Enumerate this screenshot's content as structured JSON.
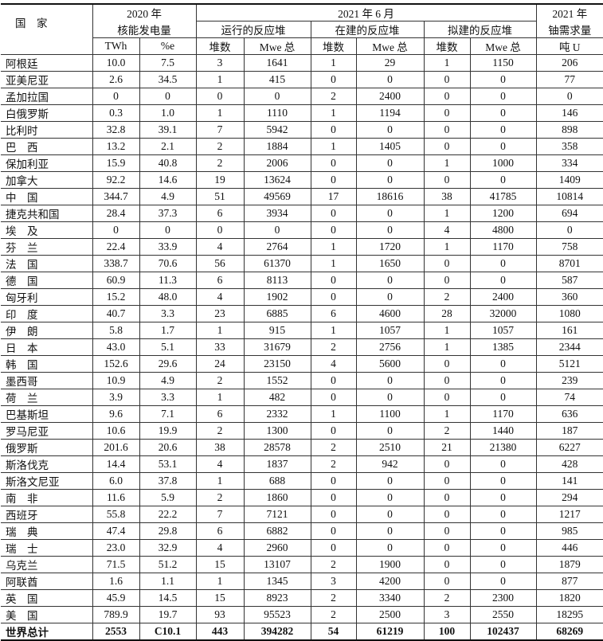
{
  "header": {
    "country": "国　家",
    "gen_year": "2020 年",
    "gen_title": "核能发电量",
    "twh": "TWh",
    "pct": "%e",
    "period": "2021 年 6 月",
    "operating": "运行的反应堆",
    "construction": "在建的反应堆",
    "planned": "拟建的反应堆",
    "count": "堆数",
    "mwe": "Mwe 总",
    "uranium_year": "2021 年",
    "uranium_title": "铀需求量",
    "uranium_unit": "吨 U"
  },
  "rows": [
    [
      "阿根廷",
      "10.0",
      "7.5",
      "3",
      "1641",
      "1",
      "29",
      "1",
      "1150",
      "206"
    ],
    [
      "亚美尼亚",
      "2.6",
      "34.5",
      "1",
      "415",
      "0",
      "0",
      "0",
      "0",
      "77"
    ],
    [
      "孟加拉国",
      "0",
      "0",
      "0",
      "0",
      "2",
      "2400",
      "0",
      "0",
      "0"
    ],
    [
      "白俄罗斯",
      "0.3",
      "1.0",
      "1",
      "1110",
      "1",
      "1194",
      "0",
      "0",
      "146"
    ],
    [
      "比利时",
      "32.8",
      "39.1",
      "7",
      "5942",
      "0",
      "0",
      "0",
      "0",
      "898"
    ],
    [
      "巴　西",
      "13.2",
      "2.1",
      "2",
      "1884",
      "1",
      "1405",
      "0",
      "0",
      "358"
    ],
    [
      "保加利亚",
      "15.9",
      "40.8",
      "2",
      "2006",
      "0",
      "0",
      "1",
      "1000",
      "334"
    ],
    [
      "加拿大",
      "92.2",
      "14.6",
      "19",
      "13624",
      "0",
      "0",
      "0",
      "0",
      "1409"
    ],
    [
      "中　国",
      "344.7",
      "4.9",
      "51",
      "49569",
      "17",
      "18616",
      "38",
      "41785",
      "10814"
    ],
    [
      "捷克共和国",
      "28.4",
      "37.3",
      "6",
      "3934",
      "0",
      "0",
      "1",
      "1200",
      "694"
    ],
    [
      "埃　及",
      "0",
      "0",
      "0",
      "0",
      "0",
      "0",
      "4",
      "4800",
      "0"
    ],
    [
      "芬　兰",
      "22.4",
      "33.9",
      "4",
      "2764",
      "1",
      "1720",
      "1",
      "1170",
      "758"
    ],
    [
      "法　国",
      "338.7",
      "70.6",
      "56",
      "61370",
      "1",
      "1650",
      "0",
      "0",
      "8701"
    ],
    [
      "德　国",
      "60.9",
      "11.3",
      "6",
      "8113",
      "0",
      "0",
      "0",
      "0",
      "587"
    ],
    [
      "匈牙利",
      "15.2",
      "48.0",
      "4",
      "1902",
      "0",
      "0",
      "2",
      "2400",
      "360"
    ],
    [
      "印　度",
      "40.7",
      "3.3",
      "23",
      "6885",
      "6",
      "4600",
      "28",
      "32000",
      "1080"
    ],
    [
      "伊　朗",
      "5.8",
      "1.7",
      "1",
      "915",
      "1",
      "1057",
      "1",
      "1057",
      "161"
    ],
    [
      "日　本",
      "43.0",
      "5.1",
      "33",
      "31679",
      "2",
      "2756",
      "1",
      "1385",
      "2344"
    ],
    [
      "韩　国",
      "152.6",
      "29.6",
      "24",
      "23150",
      "4",
      "5600",
      "0",
      "0",
      "5121"
    ],
    [
      "墨西哥",
      "10.9",
      "4.9",
      "2",
      "1552",
      "0",
      "0",
      "0",
      "0",
      "239"
    ],
    [
      "荷　兰",
      "3.9",
      "3.3",
      "1",
      "482",
      "0",
      "0",
      "0",
      "0",
      "74"
    ],
    [
      "巴基斯坦",
      "9.6",
      "7.1",
      "6",
      "2332",
      "1",
      "1100",
      "1",
      "1170",
      "636"
    ],
    [
      "罗马尼亚",
      "10.6",
      "19.9",
      "2",
      "1300",
      "0",
      "0",
      "2",
      "1440",
      "187"
    ],
    [
      "俄罗斯",
      "201.6",
      "20.6",
      "38",
      "28578",
      "2",
      "2510",
      "21",
      "21380",
      "6227"
    ],
    [
      "斯洛伐克",
      "14.4",
      "53.1",
      "4",
      "1837",
      "2",
      "942",
      "0",
      "0",
      "428"
    ],
    [
      "斯洛文尼亚",
      "6.0",
      "37.8",
      "1",
      "688",
      "0",
      "0",
      "0",
      "0",
      "141"
    ],
    [
      "南　非",
      "11.6",
      "5.9",
      "2",
      "1860",
      "0",
      "0",
      "0",
      "0",
      "294"
    ],
    [
      "西班牙",
      "55.8",
      "22.2",
      "7",
      "7121",
      "0",
      "0",
      "0",
      "0",
      "1217"
    ],
    [
      "瑞　典",
      "47.4",
      "29.8",
      "6",
      "6882",
      "0",
      "0",
      "0",
      "0",
      "985"
    ],
    [
      "瑞　士",
      "23.0",
      "32.9",
      "4",
      "2960",
      "0",
      "0",
      "0",
      "0",
      "446"
    ],
    [
      "乌克兰",
      "71.5",
      "51.2",
      "15",
      "13107",
      "2",
      "1900",
      "0",
      "0",
      "1879"
    ],
    [
      "阿联酋",
      "1.6",
      "1.1",
      "1",
      "1345",
      "3",
      "4200",
      "0",
      "0",
      "877"
    ],
    [
      "英　国",
      "45.9",
      "14.5",
      "15",
      "8923",
      "2",
      "3340",
      "2",
      "2300",
      "1820"
    ],
    [
      "美　国",
      "789.9",
      "19.7",
      "93",
      "95523",
      "2",
      "2500",
      "3",
      "2550",
      "18295"
    ]
  ],
  "total": [
    "世界总计",
    "2553",
    "C10.1",
    "443",
    "394282",
    "54",
    "61219",
    "100",
    "102437",
    "68269"
  ]
}
